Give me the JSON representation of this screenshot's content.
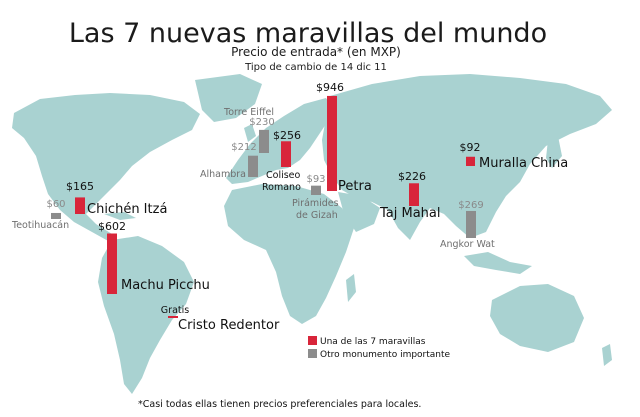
{
  "header": {
    "title": "Las 7 nuevas maravillas del mundo",
    "subtitle": "Precio de entrada* (en MXP)",
    "exchange_note": "Tipo de cambio de 14 dic 11"
  },
  "legend": {
    "wonder": "Una de las 7 maravillas",
    "other": "Otro monumento importante"
  },
  "footnote": "*Casi todas ellas tienen precios preferenciales para locales.",
  "colors": {
    "wonder": "#d8253a",
    "other": "#8c8c8c",
    "ocean": "#ffffff",
    "land": "#a9d2d1"
  },
  "chart_data": {
    "type": "bar",
    "unit": "MXP",
    "series": [
      {
        "name": "Una de las 7 maravillas",
        "items": [
          {
            "name": "Chichén Itzá",
            "value": 165,
            "value_label": "$165"
          },
          {
            "name": "Machu Picchu",
            "value": 602,
            "value_label": "$602"
          },
          {
            "name": "Cristo Redentor",
            "value": 0,
            "value_label": "Gratis"
          },
          {
            "name": "Coliseo Romano",
            "value": 256,
            "value_label": "$256"
          },
          {
            "name": "Petra",
            "value": 946,
            "value_label": "$946"
          },
          {
            "name": "Taj Mahal",
            "value": 226,
            "value_label": "$226"
          },
          {
            "name": "Muralla China",
            "value": 92,
            "value_label": "$92"
          }
        ]
      },
      {
        "name": "Otro monumento importante",
        "items": [
          {
            "name": "Teotihuacán",
            "value": 60,
            "value_label": "$60"
          },
          {
            "name": "Alhambra",
            "value": 212,
            "value_label": "$212"
          },
          {
            "name": "Torre Eiffel",
            "value": 230,
            "value_label": "$230"
          },
          {
            "name": "Pirámides de Gizah",
            "value": 93,
            "value_label": "$93"
          },
          {
            "name": "Angkor Wat",
            "value": 269,
            "value_label": "$269"
          }
        ]
      }
    ]
  }
}
